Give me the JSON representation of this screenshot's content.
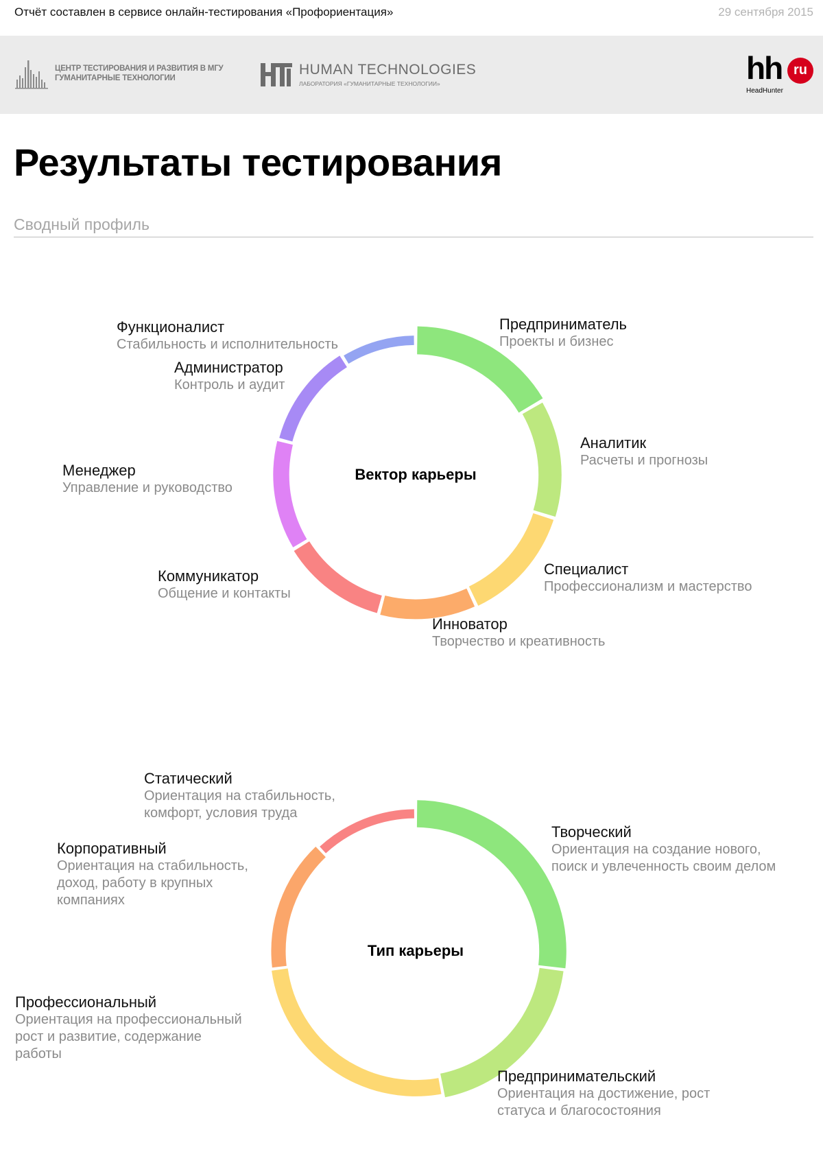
{
  "header": {
    "report_text": "Отчёт составлен в сервисе онлайн-тестирования «Профориентация»",
    "date": "29 сентября 2015"
  },
  "logos": {
    "center": {
      "line1": "ЦЕНТР ТЕСТИРОВАНИЯ И РАЗВИТИЯ В МГУ",
      "line2": "ГУМАНИТАРНЫЕ ТЕХНОЛОГИИ"
    },
    "human_tech": {
      "name": "HUMAN TECHNOLOGIES",
      "sub": "ЛАБОРАТОРИЯ «ГУМАНИТАРНЫЕ ТЕХНОЛОГИИ»"
    },
    "hh": {
      "main": "hh",
      "badge": "ru",
      "sub": "HeadHunter",
      "badge_color": "#d6001c"
    }
  },
  "page": {
    "title": "Результаты тестирования",
    "subtitle": "Сводный профиль"
  },
  "chart_data": [
    {
      "type": "pie",
      "title": "Вектор карьеры",
      "categories": [
        "Предприниматель",
        "Аналитик",
        "Специалист",
        "Инноватор",
        "Коммуникатор",
        "Менеджер",
        "Администратор",
        "Функционалист"
      ],
      "descriptions": [
        "Проекты и бизнес",
        "Расчеты и прогнозы",
        "Профессионализм и мастерство",
        "Творчество и креативность",
        "Общение и контакты",
        "Управление и руководство",
        "Контроль и аудит",
        "Стабильность и исполнительность"
      ],
      "values": [
        15.0,
        12.0,
        12.0,
        10.0,
        11.0,
        11.5,
        11.0,
        8.0
      ],
      "thickness": [
        6.8,
        5.6,
        5.2,
        4.8,
        4.4,
        3.9,
        3.3,
        2.3
      ],
      "colors": [
        "#8ee67d",
        "#bde87f",
        "#fdd872",
        "#fcab6a",
        "#f98383",
        "#df82f5",
        "#a78af5",
        "#94a4f2"
      ]
    },
    {
      "type": "pie",
      "title": "Тип карьеры",
      "categories": [
        "Творческий",
        "Предпринимательский",
        "Профессиональный",
        "Корпоративный",
        "Статический"
      ],
      "descriptions": [
        "Ориентация на создание нового,\nпоиск и увлеченность своим делом",
        "Ориентация на достижение, рост\nстатуса и благосостояния",
        "Ориентация на профессиональный\nрост и развитие, содержание\nработы",
        "Ориентация на стабильность,\nдоход, работу в крупных\nкомпаниях",
        "Ориентация на стабильность,\nкомфорт, условия труда"
      ],
      "values": [
        27.0,
        20.0,
        26.0,
        15.0,
        12.0
      ],
      "thickness": [
        9.0,
        8.0,
        5.4,
        4.8,
        3.0
      ],
      "colors": [
        "#8ee67d",
        "#bde87f",
        "#fdd872",
        "#fba66a",
        "#f98383"
      ]
    }
  ]
}
